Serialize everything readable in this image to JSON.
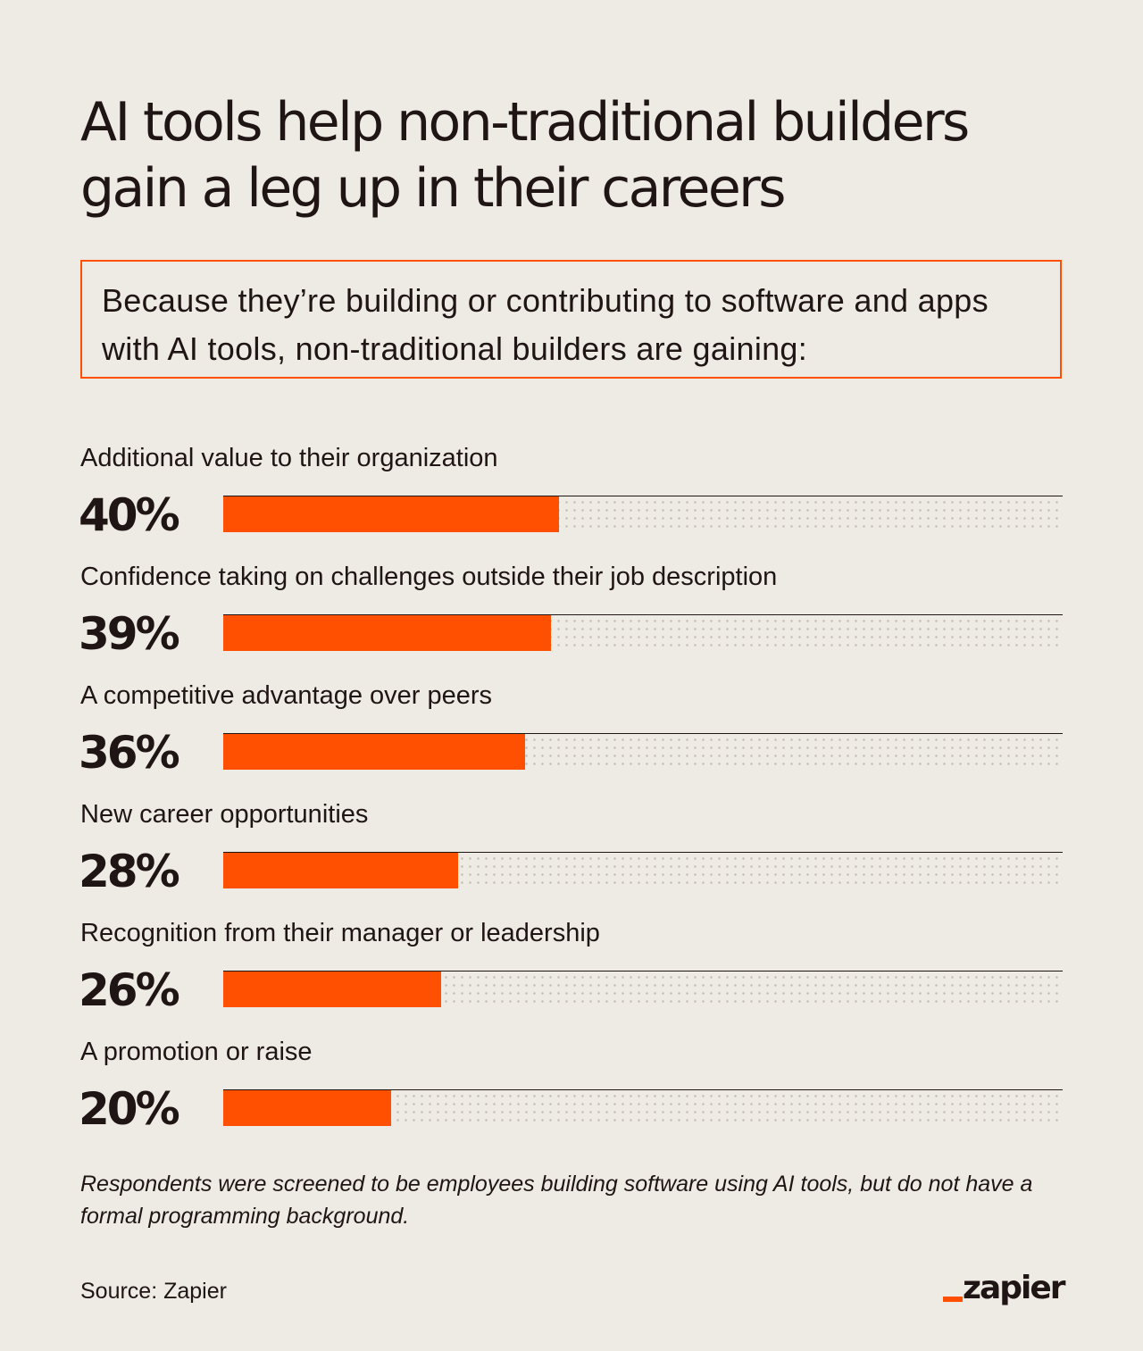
{
  "title": "AI tools help non-traditional builders gain a leg up in their careers",
  "callout": "Because they’re building or contributing to software and apps with AI tools, non-traditional builders are gaining:",
  "chart_data": {
    "type": "bar",
    "orientation": "horizontal",
    "xlim": [
      0,
      100
    ],
    "grid": false,
    "legend": "none",
    "categories": [
      "Additional value to their organization",
      "Confidence taking on challenges outside their job description",
      "A competitive advantage over peers",
      "New career opportunities",
      "Recognition from their manager or leadership",
      "A promotion or raise"
    ],
    "values": [
      40,
      39,
      36,
      28,
      26,
      20
    ],
    "data_labels": [
      "40%",
      "39%",
      "36%",
      "28%",
      "26%",
      "20%"
    ],
    "bar_color": "#ff4f00"
  },
  "note": "Respondents were screened to be employees building software using AI tools, but do not have a formal programming background.",
  "source": "Source: Zapier",
  "logo": {
    "text": "zapier",
    "accent_color": "#ff4f00"
  },
  "colors": {
    "background": "#eeeae4",
    "text": "#201515",
    "accent": "#ff4f00"
  }
}
